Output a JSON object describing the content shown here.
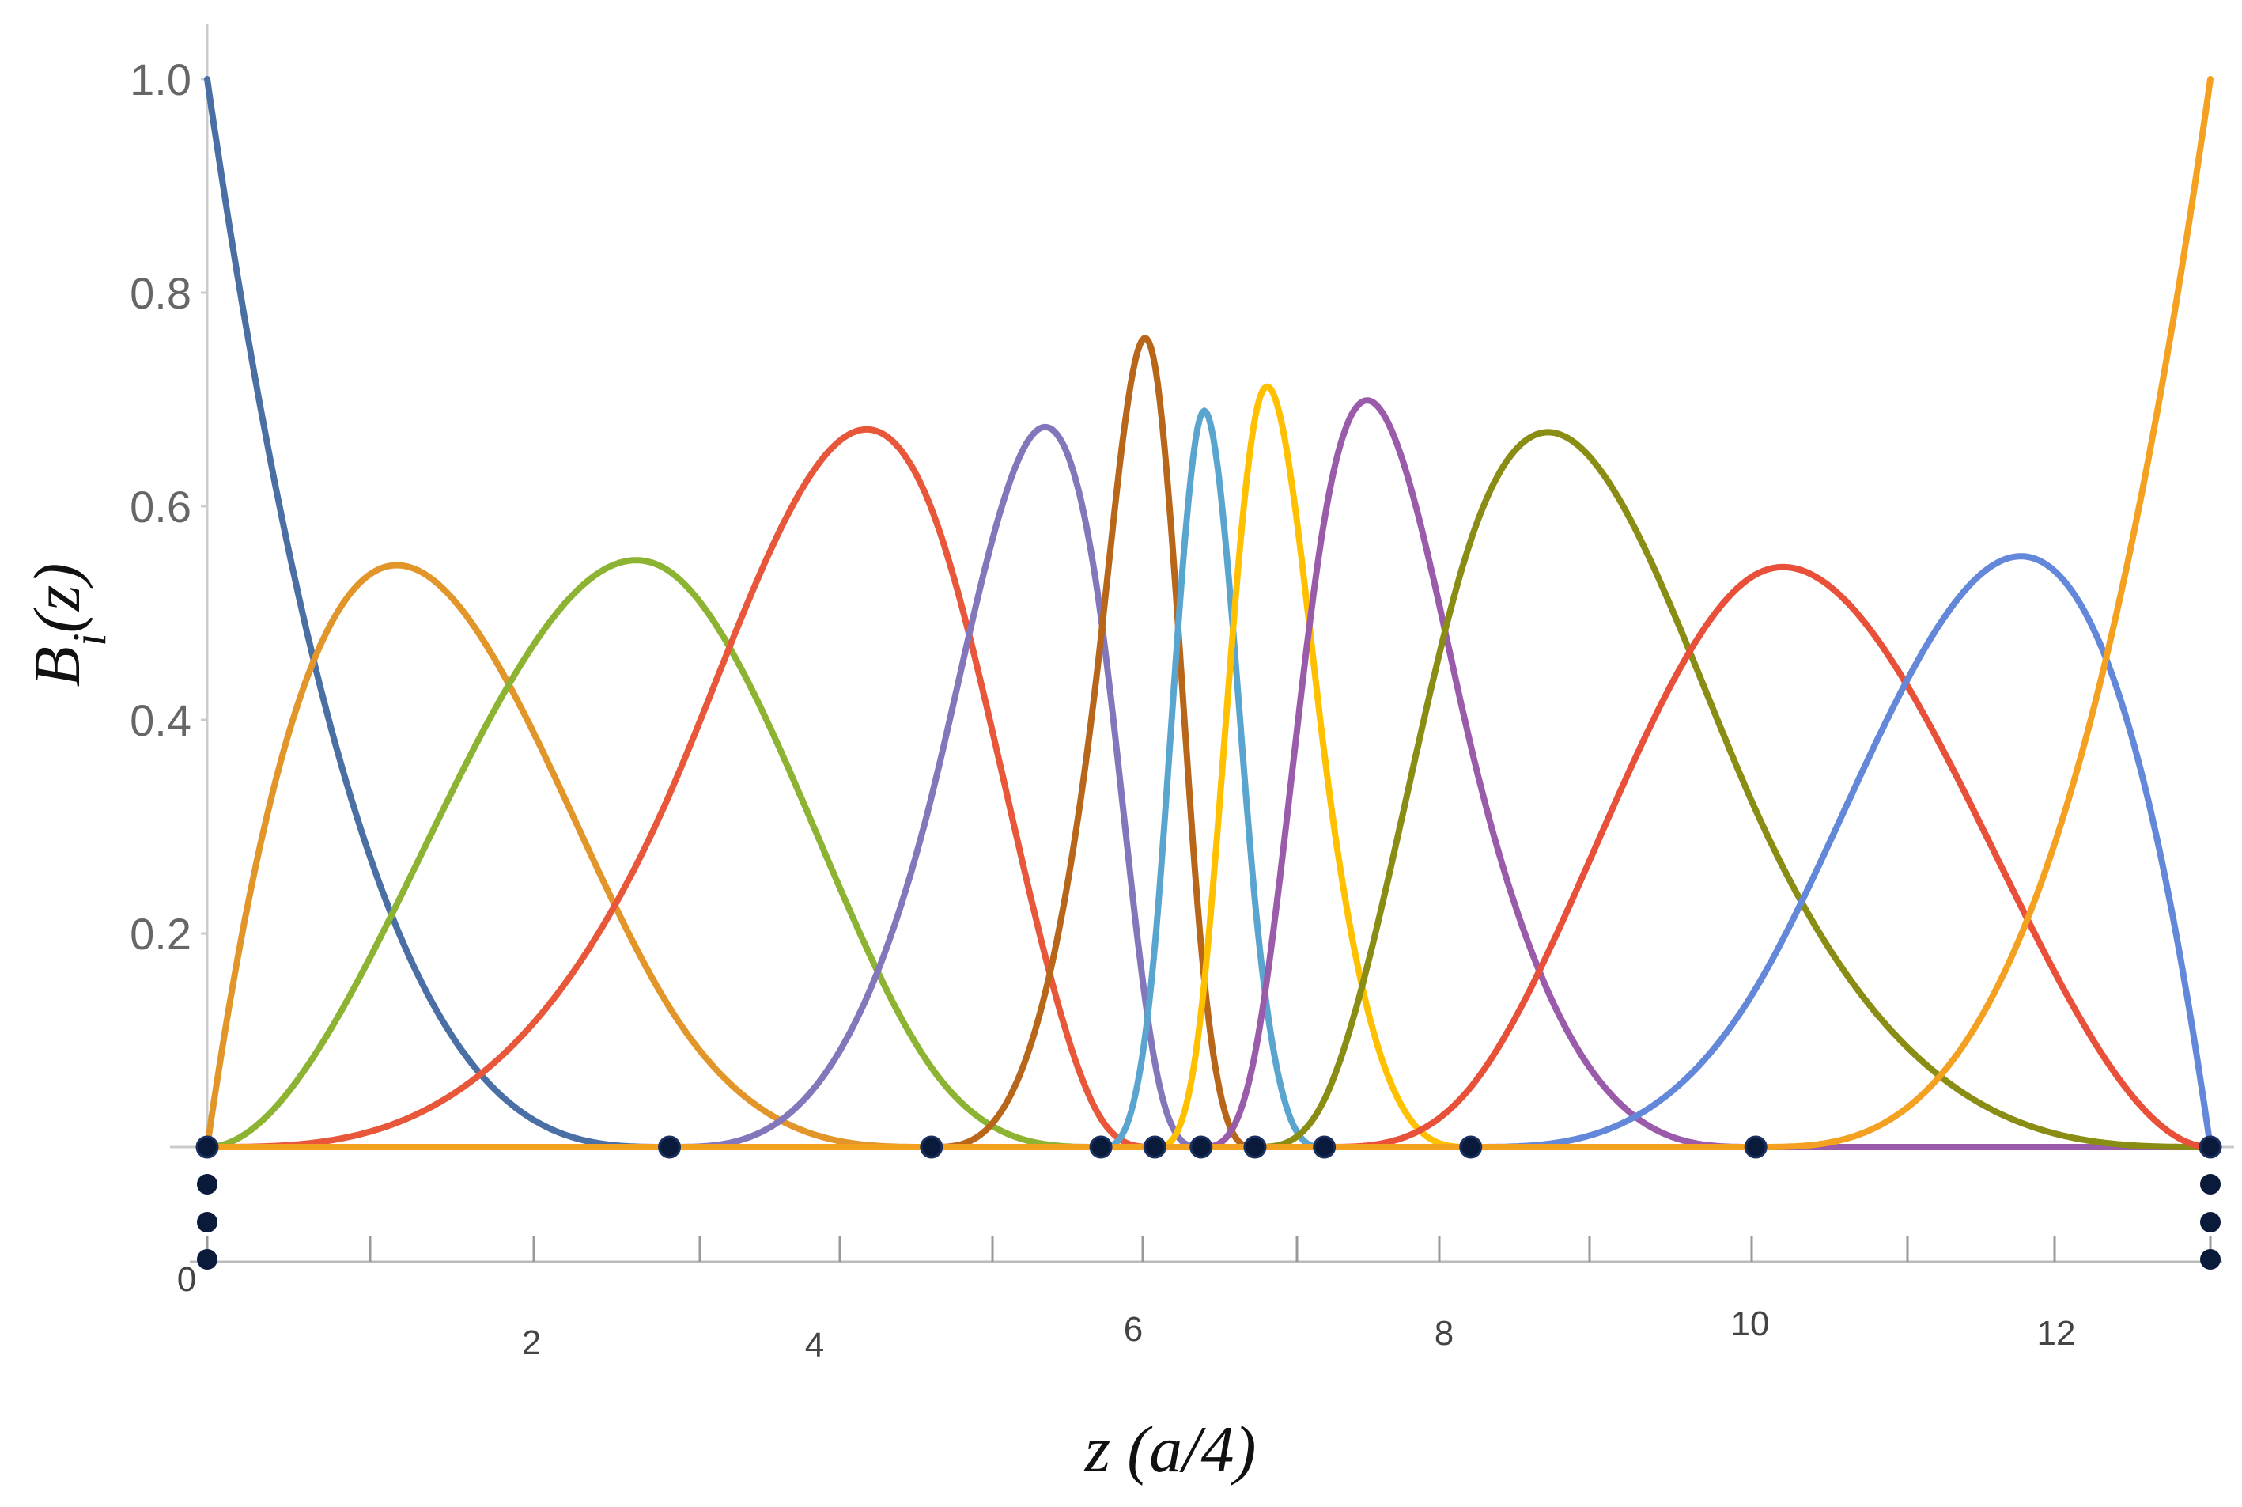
{
  "chart_data": {
    "type": "line",
    "xlabel": "z (a/4)",
    "ylabel": "B_i(z)",
    "xlim": [
      0,
      13
    ],
    "ylim": [
      0,
      1.0
    ],
    "y_ticks": [
      "0.2",
      "0.4",
      "0.6",
      "0.8",
      "1.0"
    ],
    "x_ticks_lower": [
      "0",
      "2",
      "4",
      "6",
      "8",
      "10",
      "12"
    ],
    "grid": false,
    "knots": [
      0,
      0,
      0,
      0,
      3.0,
      4.7,
      5.8,
      6.15,
      6.45,
      6.8,
      7.25,
      8.2,
      10.05,
      13,
      13,
      13,
      13
    ],
    "series": [
      {
        "color": "#4a6fa5",
        "peak_x": 0.0,
        "peak_y": 1.0
      },
      {
        "color": "#e2962a",
        "peak_x": 1.25,
        "peak_y": 0.555
      },
      {
        "color": "#8db332",
        "peak_x": 2.85,
        "peak_y": 0.54
      },
      {
        "color": "#e8573a",
        "peak_x": 4.45,
        "peak_y": 0.65
      },
      {
        "color": "#8476ba",
        "peak_x": 5.6,
        "peak_y": 0.7
      },
      {
        "color": "#b8661a",
        "peak_x": 6.15,
        "peak_y": 0.77
      },
      {
        "color": "#5aa5cf",
        "peak_x": 6.45,
        "peak_y": 0.665
      },
      {
        "color": "#ffc000",
        "peak_x": 6.75,
        "peak_y": 0.77
      },
      {
        "color": "#9a5bab",
        "peak_x": 7.35,
        "peak_y": 0.7
      },
      {
        "color": "#8a8d14",
        "peak_x": 8.55,
        "peak_y": 0.65
      },
      {
        "color": "#e8503a",
        "peak_x": 10.1,
        "peak_y": 0.54
      },
      {
        "color": "#6388d9",
        "peak_x": 11.75,
        "peak_y": 0.555
      },
      {
        "color": "#f4a020",
        "peak_x": 13.0,
        "peak_y": 1.0
      }
    ]
  }
}
